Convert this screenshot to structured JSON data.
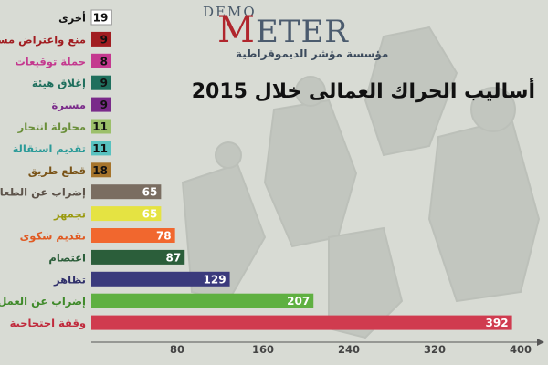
{
  "logo": {
    "top_text": "DEMO",
    "main_first": "M",
    "main_rest": "ETER",
    "subtitle": "مؤسسة مؤشر الديموقراطية"
  },
  "chart_data": {
    "type": "bar",
    "orientation": "horizontal",
    "title": "أساليب الحراك العمالى خلال 2015",
    "xlim": [
      0,
      400
    ],
    "ticks": [
      80,
      160,
      240,
      320,
      400
    ],
    "categories": [
      "أخرى",
      "منع واعتراض مسئول",
      "حملة توقيعات",
      "إغلاق هيئة",
      "مسيرة",
      "محاولة انتحار",
      "تقديم استقالة",
      "قطع طريق",
      "إضراب عن الطعام",
      "تجمهر",
      "تقديم شكوى",
      "اعتصام",
      "تظاهر",
      "إضراب عن العمل",
      "وقفة احتجاجية"
    ],
    "values": [
      19,
      9,
      8,
      9,
      9,
      11,
      11,
      18,
      65,
      65,
      78,
      87,
      129,
      207,
      392
    ],
    "value_labels": [
      "19",
      "9",
      "8",
      "9",
      "9",
      "11",
      "11",
      "18",
      "65",
      "65",
      "78",
      "87",
      "129",
      "207",
      "392"
    ],
    "colors": [
      "#ffffff",
      "#a11d21",
      "#c4398f",
      "#1f6f5d",
      "#7a2b8a",
      "#9cc06a",
      "#58c2c0",
      "#a6742b",
      "#7a6d61",
      "#e5e342",
      "#f1672e",
      "#2b5e3a",
      "#3a3a7c",
      "#5fb041",
      "#d03b4f"
    ],
    "label_colors": [
      "#111111",
      "#a11d21",
      "#c4398f",
      "#1f6f5d",
      "#7a2b8a",
      "#6a8f3a",
      "#2a9a98",
      "#7a5418",
      "#5d534a",
      "#9a9a10",
      "#e05a22",
      "#2b5e3a",
      "#2f2f6a",
      "#3f8a2a",
      "#c02a3c"
    ],
    "value_text_colors": [
      "#111111",
      "#111111",
      "#111111",
      "#111111",
      "#111111",
      "#111111",
      "#111111",
      "#111111",
      "#ffffff",
      "#ffffff",
      "#ffffff",
      "#ffffff",
      "#ffffff",
      "#ffffff",
      "#ffffff"
    ]
  }
}
